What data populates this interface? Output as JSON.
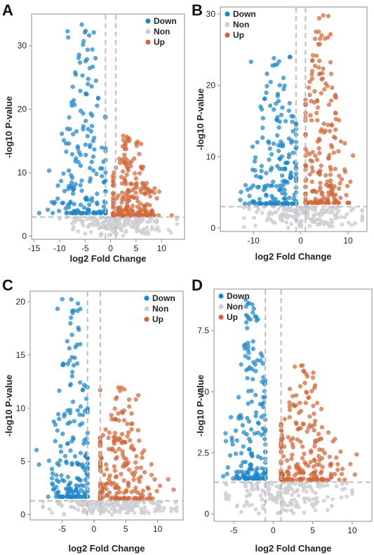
{
  "chart_data": [
    {
      "type": "scatter",
      "panel": "A",
      "xlabel": "log2 Fold Change",
      "ylabel": "-log10 P-value",
      "xlim": [
        -15.5,
        14.5
      ],
      "ylim": [
        -0.5,
        35
      ],
      "xticks": [
        -15,
        -10,
        -5,
        0,
        5,
        10
      ],
      "yticks": [
        0,
        10,
        20,
        30
      ],
      "thresholds": {
        "fc": [
          -1,
          1
        ],
        "p": 3
      },
      "legend": {
        "position": "top-right",
        "entries": [
          "Down",
          "Non",
          "Up"
        ]
      },
      "series": [
        {
          "name": "Down",
          "color": "#1f86c8",
          "x_range": [
            -14,
            -1
          ],
          "y_range": [
            3,
            34
          ],
          "peak_x": -4.8
        },
        {
          "name": "Non",
          "color": "#cfcfd4",
          "x_range": [
            -10,
            13
          ],
          "y_range": [
            0,
            3
          ]
        },
        {
          "name": "Up",
          "color": "#d0683b",
          "x_range": [
            0.5,
            12
          ],
          "y_range": [
            3,
            16
          ]
        }
      ]
    },
    {
      "type": "scatter",
      "panel": "B",
      "xlabel": "log2 Fold Change",
      "ylabel": "-log10 P-value",
      "xlim": [
        -17,
        14
      ],
      "ylim": [
        -0.5,
        31
      ],
      "xticks": [
        -10,
        0,
        10
      ],
      "yticks": [
        0,
        10,
        20,
        30
      ],
      "thresholds": {
        "fc": [
          -1,
          1
        ],
        "p": 3
      },
      "legend": {
        "position": "top-left",
        "entries": [
          "Down",
          "Non",
          "Up"
        ]
      },
      "series": [
        {
          "name": "Down",
          "color": "#1f86c8",
          "x_range": [
            -16,
            -1
          ],
          "y_range": [
            3,
            24
          ]
        },
        {
          "name": "Non",
          "color": "#cfcfd4",
          "x_range": [
            -12,
            13
          ],
          "y_range": [
            0,
            3
          ]
        },
        {
          "name": "Up",
          "color": "#d0683b",
          "x_range": [
            1,
            13
          ],
          "y_range": [
            3,
            30
          ]
        }
      ]
    },
    {
      "type": "scatter",
      "panel": "C",
      "xlabel": "log2 Fold Change",
      "ylabel": "-log10 P-value",
      "xlim": [
        -10,
        14
      ],
      "ylim": [
        -0.5,
        21
      ],
      "xticks": [
        -5,
        0,
        5,
        10
      ],
      "yticks": [
        0,
        5,
        10,
        15,
        20
      ],
      "thresholds": {
        "fc": [
          -1,
          1
        ],
        "p": 1.3
      },
      "legend": {
        "position": "top-right",
        "entries": [
          "Down",
          "Non",
          "Up"
        ]
      },
      "series": [
        {
          "name": "Down",
          "color": "#1f86c8",
          "x_range": [
            -9,
            -1
          ],
          "y_range": [
            1.3,
            20.5
          ]
        },
        {
          "name": "Non",
          "color": "#cfcfd4",
          "x_range": [
            -8,
            13
          ],
          "y_range": [
            0,
            1.3
          ]
        },
        {
          "name": "Up",
          "color": "#d0683b",
          "x_range": [
            1,
            12.5
          ],
          "y_range": [
            1.3,
            12
          ]
        }
      ]
    },
    {
      "type": "scatter",
      "panel": "D",
      "xlabel": "log2 Fold Change",
      "ylabel": "-log10 P-value",
      "xlim": [
        -7.5,
        12.5
      ],
      "ylim": [
        -0.3,
        9.2
      ],
      "xticks": [
        -5,
        0,
        5,
        10
      ],
      "yticks": [
        0,
        2.5,
        5.0,
        7.5
      ],
      "ytick_labels": [
        "0",
        "2.5",
        "5.0",
        "7.5"
      ],
      "thresholds": {
        "fc": [
          -1,
          1
        ],
        "p": 1.3
      },
      "legend": {
        "position": "top-left",
        "entries": [
          "Down",
          "Non",
          "Up"
        ]
      },
      "series": [
        {
          "name": "Down",
          "color": "#1f86c8",
          "x_range": [
            -7,
            -1
          ],
          "y_range": [
            1.3,
            9
          ]
        },
        {
          "name": "Non",
          "color": "#cfcfd4",
          "x_range": [
            -6,
            10
          ],
          "y_range": [
            0,
            1.3
          ]
        },
        {
          "name": "Up",
          "color": "#d0683b",
          "x_range": [
            1,
            11
          ],
          "y_range": [
            1.3,
            6.3
          ]
        }
      ]
    }
  ]
}
